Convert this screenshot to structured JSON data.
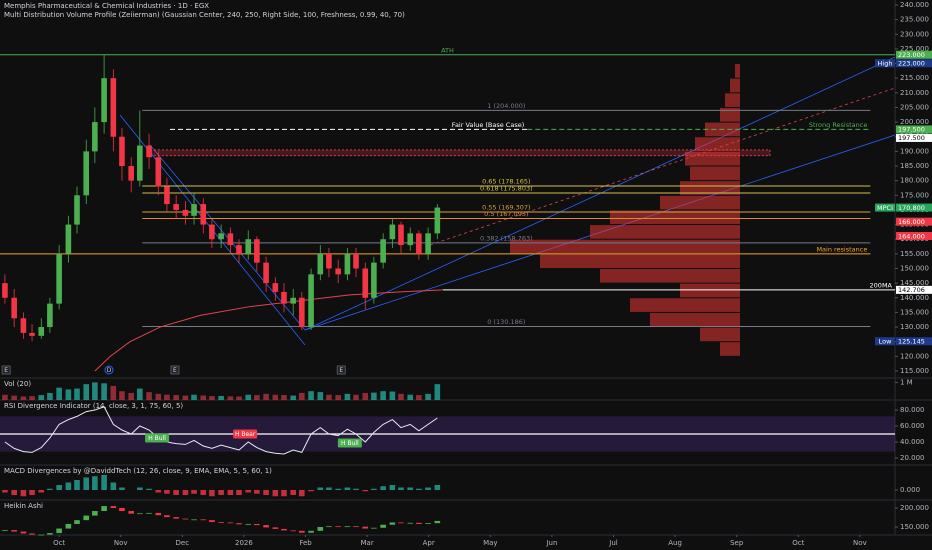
{
  "header": {
    "title": "Memphis Pharmaceutical & Chemical Industries · 1D · EGX",
    "indicator": "Multi Distribution Volume Profile (Zeiierman) (Gaussian Center, 240, 250, Right Side, 100, Freshness, 0.99, 40, 70)"
  },
  "chart_data": [
    {
      "type": "candlestick",
      "x": [
        -0.88,
        -0.73,
        -0.58,
        -0.44,
        -0.29,
        -0.15,
        0,
        0.15,
        0.29,
        0.44,
        0.58,
        0.73,
        0.88,
        1.02,
        1.17,
        1.31,
        1.46,
        1.61,
        1.75,
        1.9,
        2.05,
        2.19,
        2.34,
        2.48,
        2.63,
        2.78,
        2.92,
        3.07,
        3.21,
        3.36,
        3.51,
        3.65,
        3.8,
        3.94,
        4.09,
        4.24,
        4.38,
        4.53,
        4.68,
        4.82,
        4.97,
        5.11,
        5.26,
        5.41,
        5.55,
        5.7,
        5.84,
        5.99,
        6.14
      ],
      "open": [
        145,
        140,
        133,
        128,
        127,
        130,
        138,
        155,
        165,
        175,
        190,
        200,
        215,
        195,
        185,
        180,
        192,
        188,
        178,
        172,
        170,
        168,
        172,
        165,
        160,
        162,
        158,
        155,
        160,
        152,
        145,
        142,
        138,
        140,
        130,
        148,
        155,
        150,
        148,
        155,
        150,
        140,
        152,
        160,
        165,
        158,
        162,
        155,
        162
      ],
      "high": [
        148,
        143,
        135,
        131,
        133,
        140,
        158,
        168,
        178,
        194,
        205,
        223,
        218,
        198,
        188,
        204,
        196,
        190,
        181,
        175,
        173,
        176,
        174,
        167,
        165,
        164,
        160,
        163,
        161,
        154,
        147,
        145,
        143,
        142,
        150,
        158,
        157,
        153,
        157,
        157,
        152,
        154,
        162,
        167,
        166,
        164,
        163,
        164,
        172
      ],
      "low": [
        138,
        130,
        126,
        125.145,
        126,
        128,
        136,
        152,
        162,
        172,
        186,
        196,
        190,
        180,
        176,
        178,
        184,
        175,
        169,
        167,
        165,
        165,
        162,
        157,
        157,
        155,
        152,
        153,
        149,
        142,
        139,
        135,
        134,
        129,
        129,
        146,
        147,
        145,
        146,
        147,
        136,
        138,
        150,
        157,
        155,
        156,
        153,
        153,
        160
      ],
      "close": [
        140,
        133,
        128,
        127,
        130,
        138,
        155,
        165,
        175,
        190,
        200,
        215,
        195,
        185,
        180,
        192,
        188,
        178,
        172,
        170,
        168,
        172,
        165,
        160,
        162,
        158,
        155,
        160,
        152,
        145,
        142,
        138,
        140,
        130,
        148,
        155,
        150,
        148,
        155,
        150,
        140,
        152,
        160,
        165,
        158,
        162,
        155,
        162,
        170.8
      ],
      "up_color": "#4caf50",
      "down_color": "#f23645",
      "xlim": [
        -0.96,
        13.57
      ],
      "xticks": [
        {
          "value": 0,
          "label": "Oct"
        },
        {
          "value": 1,
          "label": "Nov"
        },
        {
          "value": 2,
          "label": "Dec"
        },
        {
          "value": 3,
          "label": "2026"
        },
        {
          "value": 4,
          "label": "Feb"
        },
        {
          "value": 5,
          "label": "Mar"
        },
        {
          "value": 6,
          "label": "Apr"
        },
        {
          "value": 7,
          "label": "May"
        },
        {
          "value": 8,
          "label": "Jun"
        },
        {
          "value": 9,
          "label": "Jul"
        },
        {
          "value": 10,
          "label": "Aug"
        },
        {
          "value": 11,
          "label": "Sep"
        },
        {
          "value": 12,
          "label": "Oct"
        },
        {
          "value": 13,
          "label": "Nov"
        }
      ],
      "ylim": [
        112.6,
        241.7
      ],
      "yticks": [
        {
          "value": 115,
          "label": "115.000"
        },
        {
          "value": 120,
          "label": "120.000"
        },
        {
          "value": 125,
          "label": "125.000"
        },
        {
          "value": 130,
          "label": "130.000"
        },
        {
          "value": 135,
          "label": "135.000"
        },
        {
          "value": 140,
          "label": "140.000"
        },
        {
          "value": 145,
          "label": "145.000"
        },
        {
          "value": 150,
          "label": "150.000"
        },
        {
          "value": 155,
          "label": "155.000"
        },
        {
          "value": 160,
          "label": "160.000"
        },
        {
          "value": 165,
          "label": "165.000"
        },
        {
          "value": 170,
          "label": "170.000"
        },
        {
          "value": 175,
          "label": "175.000"
        },
        {
          "value": 180,
          "label": "180.000"
        },
        {
          "value": 185,
          "label": "185.000"
        },
        {
          "value": 190,
          "label": "190.000"
        },
        {
          "value": 195,
          "label": "195.000"
        },
        {
          "value": 200,
          "label": "200.000"
        },
        {
          "value": 205,
          "label": "205.000"
        },
        {
          "value": 210,
          "label": "210.000"
        },
        {
          "value": 215,
          "label": "215.000"
        },
        {
          "value": 220,
          "label": "220.000"
        },
        {
          "value": 225,
          "label": "225.000"
        },
        {
          "value": 230,
          "label": "230.000"
        },
        {
          "value": 235,
          "label": "235.000"
        },
        {
          "value": 240,
          "label": "240.000"
        }
      ],
      "levels": [
        {
          "label": "ATH",
          "value": 223,
          "color": "#4caf50",
          "style": "solid",
          "x": [
            -0.96,
            13.57
          ],
          "label_pos": "middle"
        },
        {
          "label": "1 (204.000)",
          "value": 204,
          "color": "#787b86",
          "style": "solid",
          "x": [
            1.35,
            13.17
          ],
          "label_pos": "middle"
        },
        {
          "label": "Fair Value (Base Case)",
          "value": 197.5,
          "color": "#ffffff",
          "style": "dashed",
          "x": [
            1.8,
            7.6
          ],
          "label_pos": "end"
        },
        {
          "label": "Strong Resistance",
          "value": 197.5,
          "color": "#4caf50",
          "style": "dashed",
          "x": [
            7.6,
            13.17
          ],
          "label_pos": "end"
        },
        {
          "label": "0.65 (178.165)",
          "value": 178.165,
          "color": "#d4c24a",
          "style": "solid",
          "x": [
            1.35,
            13.17
          ],
          "label_pos": "middle"
        },
        {
          "label": "0.618 (175.803)",
          "value": 175.803,
          "color": "#d4c24a",
          "style": "solid",
          "x": [
            1.35,
            13.17
          ],
          "label_pos": "middle"
        },
        {
          "label": "0.55 (169.307)",
          "value": 169.307,
          "color": "#d4a23a",
          "style": "solid",
          "x": [
            1.35,
            13.17
          ],
          "label_pos": "middle"
        },
        {
          "label": "0.5 (167.093)",
          "value": 167.093,
          "color": "#e08a2e",
          "style": "solid",
          "x": [
            1.35,
            13.17
          ],
          "label_pos": "middle"
        },
        {
          "label": "0.382 (158.763)",
          "value": 158.763,
          "color": "#787b86",
          "style": "solid",
          "x": [
            1.35,
            13.17
          ],
          "label_pos": "middle"
        },
        {
          "label": "Main resistance",
          "value": 155,
          "color": "#f5a623",
          "style": "solid",
          "x": [
            -0.96,
            13.17
          ],
          "label_pos": "end"
        },
        {
          "label": "200MA",
          "value": 142.706,
          "color": "#ffffff",
          "style": "solid",
          "x": [
            6.23,
            13.57
          ],
          "label_pos": "end"
        },
        {
          "label": "0 (130.186)",
          "value": 130.186,
          "color": "#787b86",
          "style": "solid",
          "x": [
            1.35,
            13.17
          ],
          "label_pos": "middle"
        }
      ],
      "price_labels": [
        {
          "value": 223,
          "label": "223.000",
          "color": "#4caf50"
        },
        {
          "value": 223,
          "label": "223.000",
          "tag": "High",
          "color": "#1e3a8a"
        },
        {
          "value": 197.5,
          "label": "197.500",
          "color": "#4caf50"
        },
        {
          "value": 197.5,
          "label": "197.500",
          "color": "#ffffff"
        },
        {
          "value": 170.8,
          "label": "170.800",
          "tag": "MPCI",
          "color": "#26a65b"
        },
        {
          "value": 166,
          "label": "166.000",
          "color": "#f23645"
        },
        {
          "value": 164,
          "label": "164.000",
          "color": "#f23645"
        },
        {
          "value": 142.706,
          "label": "142.706",
          "color": "#ffffff"
        },
        {
          "value": 125.145,
          "label": "125.145",
          "tag": "Low",
          "color": "#1e3a8a"
        }
      ],
      "zone": [
        188.5,
        190.5
      ],
      "ma": {
        "color": "#e0454f",
        "x": [
          0.58,
          0.83,
          1.15,
          1.64,
          2.29,
          3.1,
          3.91,
          4.72,
          5.54,
          6.23
        ],
        "values": [
          115,
          120,
          125,
          130,
          134,
          137,
          139,
          141,
          142,
          142.7
        ]
      },
      "profile": {
        "color": "#e53935",
        "bins": [
          120,
          125,
          130,
          135,
          140,
          145,
          150,
          155,
          160,
          165,
          170,
          175,
          180,
          185,
          190,
          195,
          200,
          205,
          210,
          215,
          220
        ],
        "values": [
          20,
          40,
          90,
          110,
          60,
          140,
          200,
          230,
          150,
          130,
          80,
          60,
          50,
          55,
          45,
          35,
          20,
          15,
          10,
          5
        ]
      },
      "events": [
        {
          "x": -0.86,
          "label": "E"
        },
        {
          "x": 0.81,
          "label": "D"
        },
        {
          "x": 1.88,
          "label": "E"
        },
        {
          "x": 4.58,
          "label": "E"
        }
      ]
    },
    {
      "type": "bar",
      "title": "Vol (20)",
      "values": [
        300000,
        250000,
        200000,
        220000,
        280000,
        400000,
        700000,
        600000,
        650000,
        900000,
        1000000,
        950000,
        800000,
        500000,
        400000,
        650000,
        450000,
        350000,
        300000,
        280000,
        250000,
        300000,
        260000,
        220000,
        230000,
        210000,
        200000,
        300000,
        280000,
        350000,
        300000,
        280000,
        250000,
        400000,
        500000,
        450000,
        300000,
        280000,
        350000,
        300000,
        400000,
        420000,
        500000,
        480000,
        350000,
        300000,
        280000,
        350000,
        900000
      ],
      "ylim": [
        0,
        1250000
      ],
      "yticks": [
        {
          "value": 1000000,
          "label": "1 M"
        }
      ],
      "up_color": "#26a69a",
      "down_color": "#b2323e"
    },
    {
      "type": "line",
      "title": "RSI Divergence Indicator (14, close, 3, 1, 75, 60, 5)",
      "values": [
        40,
        32,
        28,
        27,
        33,
        45,
        62,
        68,
        72,
        78,
        80,
        84,
        62,
        55,
        50,
        60,
        55,
        45,
        40,
        38,
        37,
        42,
        35,
        32,
        36,
        33,
        30,
        40,
        33,
        28,
        26,
        25,
        30,
        27,
        50,
        58,
        50,
        48,
        56,
        50,
        40,
        52,
        62,
        68,
        58,
        62,
        54,
        62,
        70
      ],
      "color": "#e8eaf6",
      "ylim": [
        11.25,
        92.5
      ],
      "yticks": [
        {
          "value": 80,
          "label": "80.000"
        },
        {
          "value": 60,
          "label": "60.000"
        },
        {
          "value": 40,
          "label": "40.000"
        },
        {
          "value": 20,
          "label": "20.000"
        }
      ],
      "midline": 50,
      "band": [
        28,
        72
      ],
      "annotations": [
        {
          "x": 1.59,
          "value": 45,
          "label": "H Bull",
          "color": "#4caf50"
        },
        {
          "x": 3.02,
          "value": 50,
          "label": "H Bear",
          "color": "#f23645"
        },
        {
          "x": 4.72,
          "value": 38.75,
          "label": "H Bull",
          "color": "#4caf50"
        }
      ]
    },
    {
      "type": "bar",
      "title": "MACD Divergences by @DaviddTech (12, 26, close, 9, EMA, EMA, 5, 5, 60, 1)",
      "values": [
        -1,
        -2,
        -2.5,
        -2,
        -1,
        0.5,
        2,
        3,
        4,
        5,
        5.5,
        6,
        3,
        1,
        0,
        1,
        0.5,
        -1,
        -1.5,
        -2,
        -2,
        -1.5,
        -2,
        -2.5,
        -2,
        -2,
        -2,
        -1,
        -1.5,
        -2,
        -2.5,
        -2.5,
        -2,
        -2.5,
        -0.5,
        1,
        1,
        0.5,
        1,
        0.5,
        -0.5,
        0.5,
        1.5,
        2,
        1,
        1,
        0.5,
        1,
        2
      ],
      "ylim": [
        -4,
        10
      ],
      "yticks": [
        {
          "value": 0,
          "label": "0.000"
        }
      ],
      "up_color": "#26a69a",
      "down_color": "#f23645"
    },
    {
      "type": "candlestick",
      "title": "Heikin Ashi",
      "values": [
        142,
        138,
        133,
        130,
        130,
        134,
        146,
        158,
        168,
        180,
        192,
        205,
        200,
        192,
        185,
        186,
        187,
        181,
        176,
        172,
        170,
        170,
        168,
        163,
        162,
        160,
        157,
        158,
        155,
        149,
        145,
        141,
        140,
        135,
        140,
        150,
        152,
        150,
        152,
        151,
        146,
        148,
        156,
        162,
        161,
        161,
        158,
        160,
        166
      ],
      "ylim": [
        129,
        221
      ],
      "yticks": [
        {
          "value": 200,
          "label": "200.000"
        },
        {
          "value": 150,
          "label": "150.000"
        }
      ],
      "up_color": "#4caf50",
      "down_color": "#f23645"
    }
  ]
}
